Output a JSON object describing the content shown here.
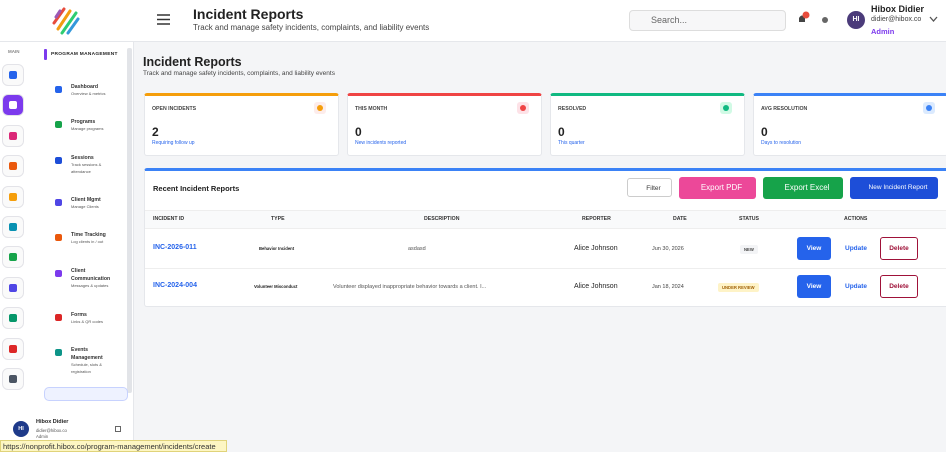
{
  "header": {
    "title": "Incident Reports",
    "subtitle": "Track and manage safety incidents, complaints, and liability events",
    "search_placeholder": "Search...",
    "user": {
      "initials": "HI",
      "name": "Hibox Didier",
      "email": "didier@hibox.co",
      "role": "Admin"
    }
  },
  "rail": {
    "label": "MAIN"
  },
  "sidebar": {
    "section": "PROGRAM MANAGEMENT",
    "items": [
      {
        "title": "Dashboard",
        "subtitle": "Overview & metrics"
      },
      {
        "title": "Programs",
        "subtitle": "Manage programs"
      },
      {
        "title": "Sessions",
        "subtitle": "Track sessions & attendance"
      },
      {
        "title": "Client Mgmt",
        "subtitle": "Manage Clients"
      },
      {
        "title": "Time Tracking",
        "subtitle": "Log clients in / out"
      },
      {
        "title": "Client Communication",
        "subtitle": "Messages & updates"
      },
      {
        "title": "Forms",
        "subtitle": "Links & QR codes"
      },
      {
        "title": "Events Management",
        "subtitle": "Schedule, slots & registration"
      }
    ]
  },
  "sidebar_user": {
    "initials": "HI",
    "name": "Hibox Didier",
    "email": "didier@hibox.co",
    "role": "Admin"
  },
  "status_url": "https://nonprofit.hibox.co/program-management/incidents/create",
  "page": {
    "title": "Incident Reports",
    "subtitle": "Track and manage safety incidents, complaints, and liability events"
  },
  "cards": [
    {
      "label": "OPEN INCIDENTS",
      "value": 2,
      "note": "Requiring follow up"
    },
    {
      "label": "THIS MONTH",
      "value": 0,
      "note": "New incidents reported"
    },
    {
      "label": "RESOLVED",
      "value": 0,
      "note": "This quarter"
    },
    {
      "label": "AVG RESOLUTION",
      "value": 0,
      "note": "Days to resolution"
    }
  ],
  "table": {
    "title": "Recent Incident Reports",
    "buttons": [
      "Filter",
      "Export PDF",
      "Export Excel",
      "New Incident Report"
    ],
    "columns": [
      "INCIDENT ID",
      "TYPE",
      "DESCRIPTION",
      "REPORTER",
      "DATE",
      "STATUS",
      "ACTIONS"
    ],
    "rows": [
      [
        "INC-2026-011",
        "Behavior Incident",
        "asdasd",
        "Alice Johnson",
        "Jun 30, 2026",
        "NEW"
      ],
      [
        "INC-2024-004",
        "Volunteer Misconduct",
        "Volunteer displayed inappropriate behavior towards a client. I...",
        "Alice Johnson",
        "Jan 18, 2024",
        "UNDER REVIEW"
      ]
    ],
    "actions": [
      "View",
      "Update",
      "Delete"
    ]
  }
}
